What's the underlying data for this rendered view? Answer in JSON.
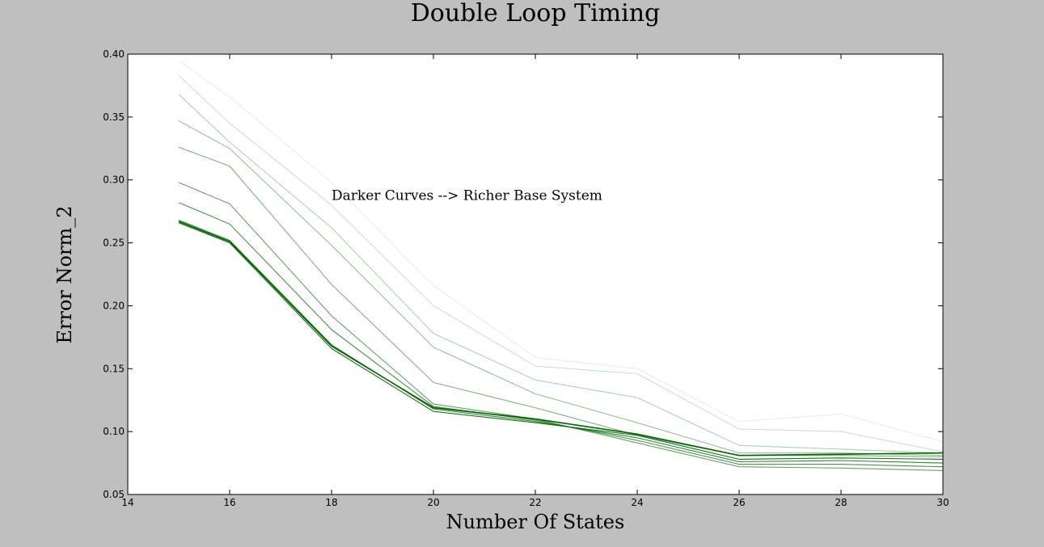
{
  "chart_data": {
    "type": "line",
    "title": "Double Loop Timing",
    "xlabel": "Number Of States",
    "ylabel": "Error Norm_2",
    "xlim": [
      14,
      30
    ],
    "ylim": [
      0.05,
      0.4
    ],
    "xticks": [
      14,
      16,
      18,
      20,
      22,
      24,
      26,
      28,
      30
    ],
    "yticks": [
      0.05,
      0.1,
      0.15,
      0.2,
      0.25,
      0.3,
      0.35,
      0.4
    ],
    "xtick_labels": [
      "14",
      "16",
      "18",
      "20",
      "22",
      "24",
      "26",
      "28",
      "30"
    ],
    "ytick_labels": [
      "0.05",
      "0.10",
      "0.15",
      "0.20",
      "0.25",
      "0.30",
      "0.35",
      "0.40"
    ],
    "grid": false,
    "annotation": {
      "text": "Darker Curves --> Richer Base System",
      "x": 18,
      "y": 0.288
    },
    "x": [
      15,
      16,
      18,
      20,
      22,
      24,
      26,
      28,
      30
    ],
    "series": [
      {
        "values": [
          0.395,
          0.366,
          0.298,
          0.216,
          0.159,
          0.15,
          0.108,
          0.114,
          0.092
        ],
        "color": "#006400",
        "opacity": 0.1
      },
      {
        "values": [
          0.383,
          0.345,
          0.28,
          0.2,
          0.152,
          0.146,
          0.102,
          0.1,
          0.084
        ],
        "color": "#006400",
        "opacity": 0.2
      },
      {
        "values": [
          0.368,
          0.33,
          0.262,
          0.178,
          0.141,
          0.127,
          0.089,
          0.086,
          0.083
        ],
        "color": "#006400",
        "opacity": 0.3
      },
      {
        "values": [
          0.347,
          0.325,
          0.248,
          0.167,
          0.13,
          0.107,
          0.083,
          0.083,
          0.081
        ],
        "color": "#006400",
        "opacity": 0.4
      },
      {
        "values": [
          0.326,
          0.311,
          0.217,
          0.139,
          0.119,
          0.097,
          0.081,
          0.081,
          0.08
        ],
        "color": "#006400",
        "opacity": 0.5
      },
      {
        "values": [
          0.298,
          0.281,
          0.192,
          0.122,
          0.11,
          0.091,
          0.072,
          0.071,
          0.069
        ],
        "color": "#006400",
        "opacity": 0.6
      },
      {
        "values": [
          0.282,
          0.265,
          0.181,
          0.12,
          0.109,
          0.093,
          0.074,
          0.074,
          0.072
        ],
        "color": "#006400",
        "opacity": 0.7
      },
      {
        "values": [
          0.268,
          0.252,
          0.169,
          0.118,
          0.108,
          0.095,
          0.076,
          0.077,
          0.075
        ],
        "color": "#006400",
        "opacity": 0.8
      },
      {
        "values": [
          0.266,
          0.25,
          0.166,
          0.116,
          0.107,
          0.097,
          0.078,
          0.079,
          0.078
        ],
        "color": "#006400",
        "opacity": 0.9
      },
      {
        "values": [
          0.267,
          0.251,
          0.168,
          0.119,
          0.11,
          0.098,
          0.081,
          0.082,
          0.083
        ],
        "color": "#006400",
        "opacity": 1.0
      }
    ]
  }
}
